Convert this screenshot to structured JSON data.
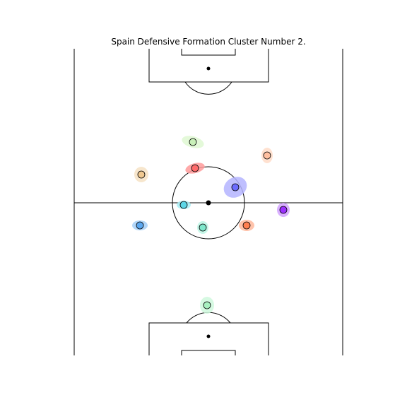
{
  "title": "Spain Defensive Formation Cluster Number 2.",
  "players": [
    {
      "id": "p1",
      "color": "#c8f0b8",
      "halo": "#dff8d2"
    },
    {
      "id": "p2",
      "color": "#ffbfa0",
      "halo": "#ffdcc8"
    },
    {
      "id": "p3",
      "color": "#f0c890",
      "halo": "#f6e2c4"
    },
    {
      "id": "p4",
      "color": "#ff6b6b",
      "halo": "#ff9a9a"
    },
    {
      "id": "p5",
      "color": "#6c6cff",
      "halo": "#b4b4ff"
    },
    {
      "id": "p6",
      "color": "#5cd6e6",
      "halo": "#a8eef6"
    },
    {
      "id": "p7",
      "color": "#9b30ff",
      "halo": "#d2a2ff"
    },
    {
      "id": "p8",
      "color": "#5ca8f0",
      "halo": "#a6d0f8"
    },
    {
      "id": "p9",
      "color": "#7ee8cc",
      "halo": "#bdf4e4"
    },
    {
      "id": "p10",
      "color": "#ff7f50",
      "halo": "#ffb89c"
    },
    {
      "id": "p11",
      "color": "#a8f0c0",
      "halo": "#cff8dd"
    }
  ]
}
